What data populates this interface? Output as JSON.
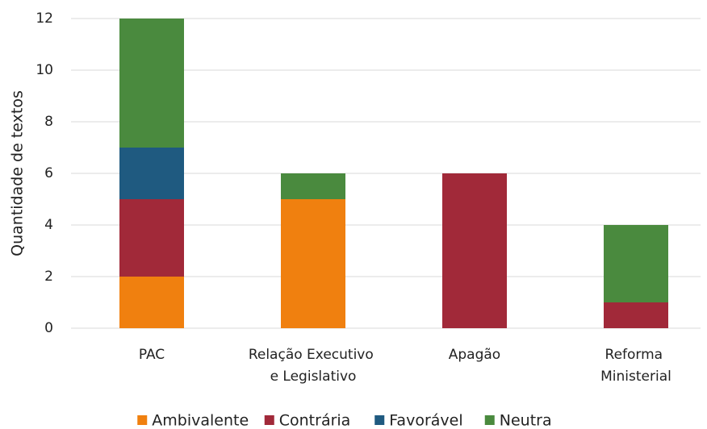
{
  "chart_data": {
    "type": "stacked_bar",
    "y_label": "Quantidade de textos",
    "categories": [
      "PAC",
      "Relação Executivo e Legislativo",
      "Apagão",
      "Reforma Ministerial"
    ],
    "series": [
      {
        "name": "Ambivalente",
        "color": "#f0800f",
        "values": [
          2,
          5,
          0,
          0
        ]
      },
      {
        "name": "Contrária",
        "color": "#a12939",
        "values": [
          3,
          0,
          6,
          1
        ]
      },
      {
        "name": "Favorável",
        "color": "#1f5a80",
        "values": [
          2,
          0,
          0,
          0
        ]
      },
      {
        "name": "Neutra",
        "color": "#4a8a3e",
        "values": [
          5,
          1,
          0,
          3
        ]
      }
    ],
    "ylim": [
      0,
      12
    ],
    "yticks": [
      0,
      2,
      4,
      6,
      8,
      10,
      12
    ],
    "grid": true,
    "legend": "bottom"
  }
}
